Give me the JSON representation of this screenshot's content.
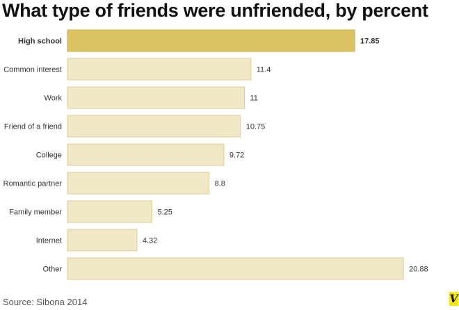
{
  "chart_data": {
    "type": "bar",
    "orientation": "horizontal",
    "title": "What type of friends were unfriended, by percent",
    "categories": [
      "High school",
      "Common interest",
      "Work",
      "Friend of a friend",
      "College",
      "Romantic partner",
      "Family member",
      "Internet",
      "Other"
    ],
    "values": [
      17.85,
      11.4,
      11,
      10.75,
      9.72,
      8.8,
      5.25,
      4.32,
      20.88
    ],
    "value_labels": [
      "17.85",
      "11.4",
      "11",
      "10.75",
      "9.72",
      "8.8",
      "5.25",
      "4.32",
      "20.88"
    ],
    "highlighted": "High school",
    "colors": {
      "highlight": "#dcc463",
      "highlight_border": "#c8ae4a",
      "bar": "#f1e8c6",
      "bar_border": "#d9cc9a"
    },
    "grid": false,
    "xlim": [
      0,
      21
    ]
  },
  "source": "Source: Sibona 2014",
  "logo": "V"
}
